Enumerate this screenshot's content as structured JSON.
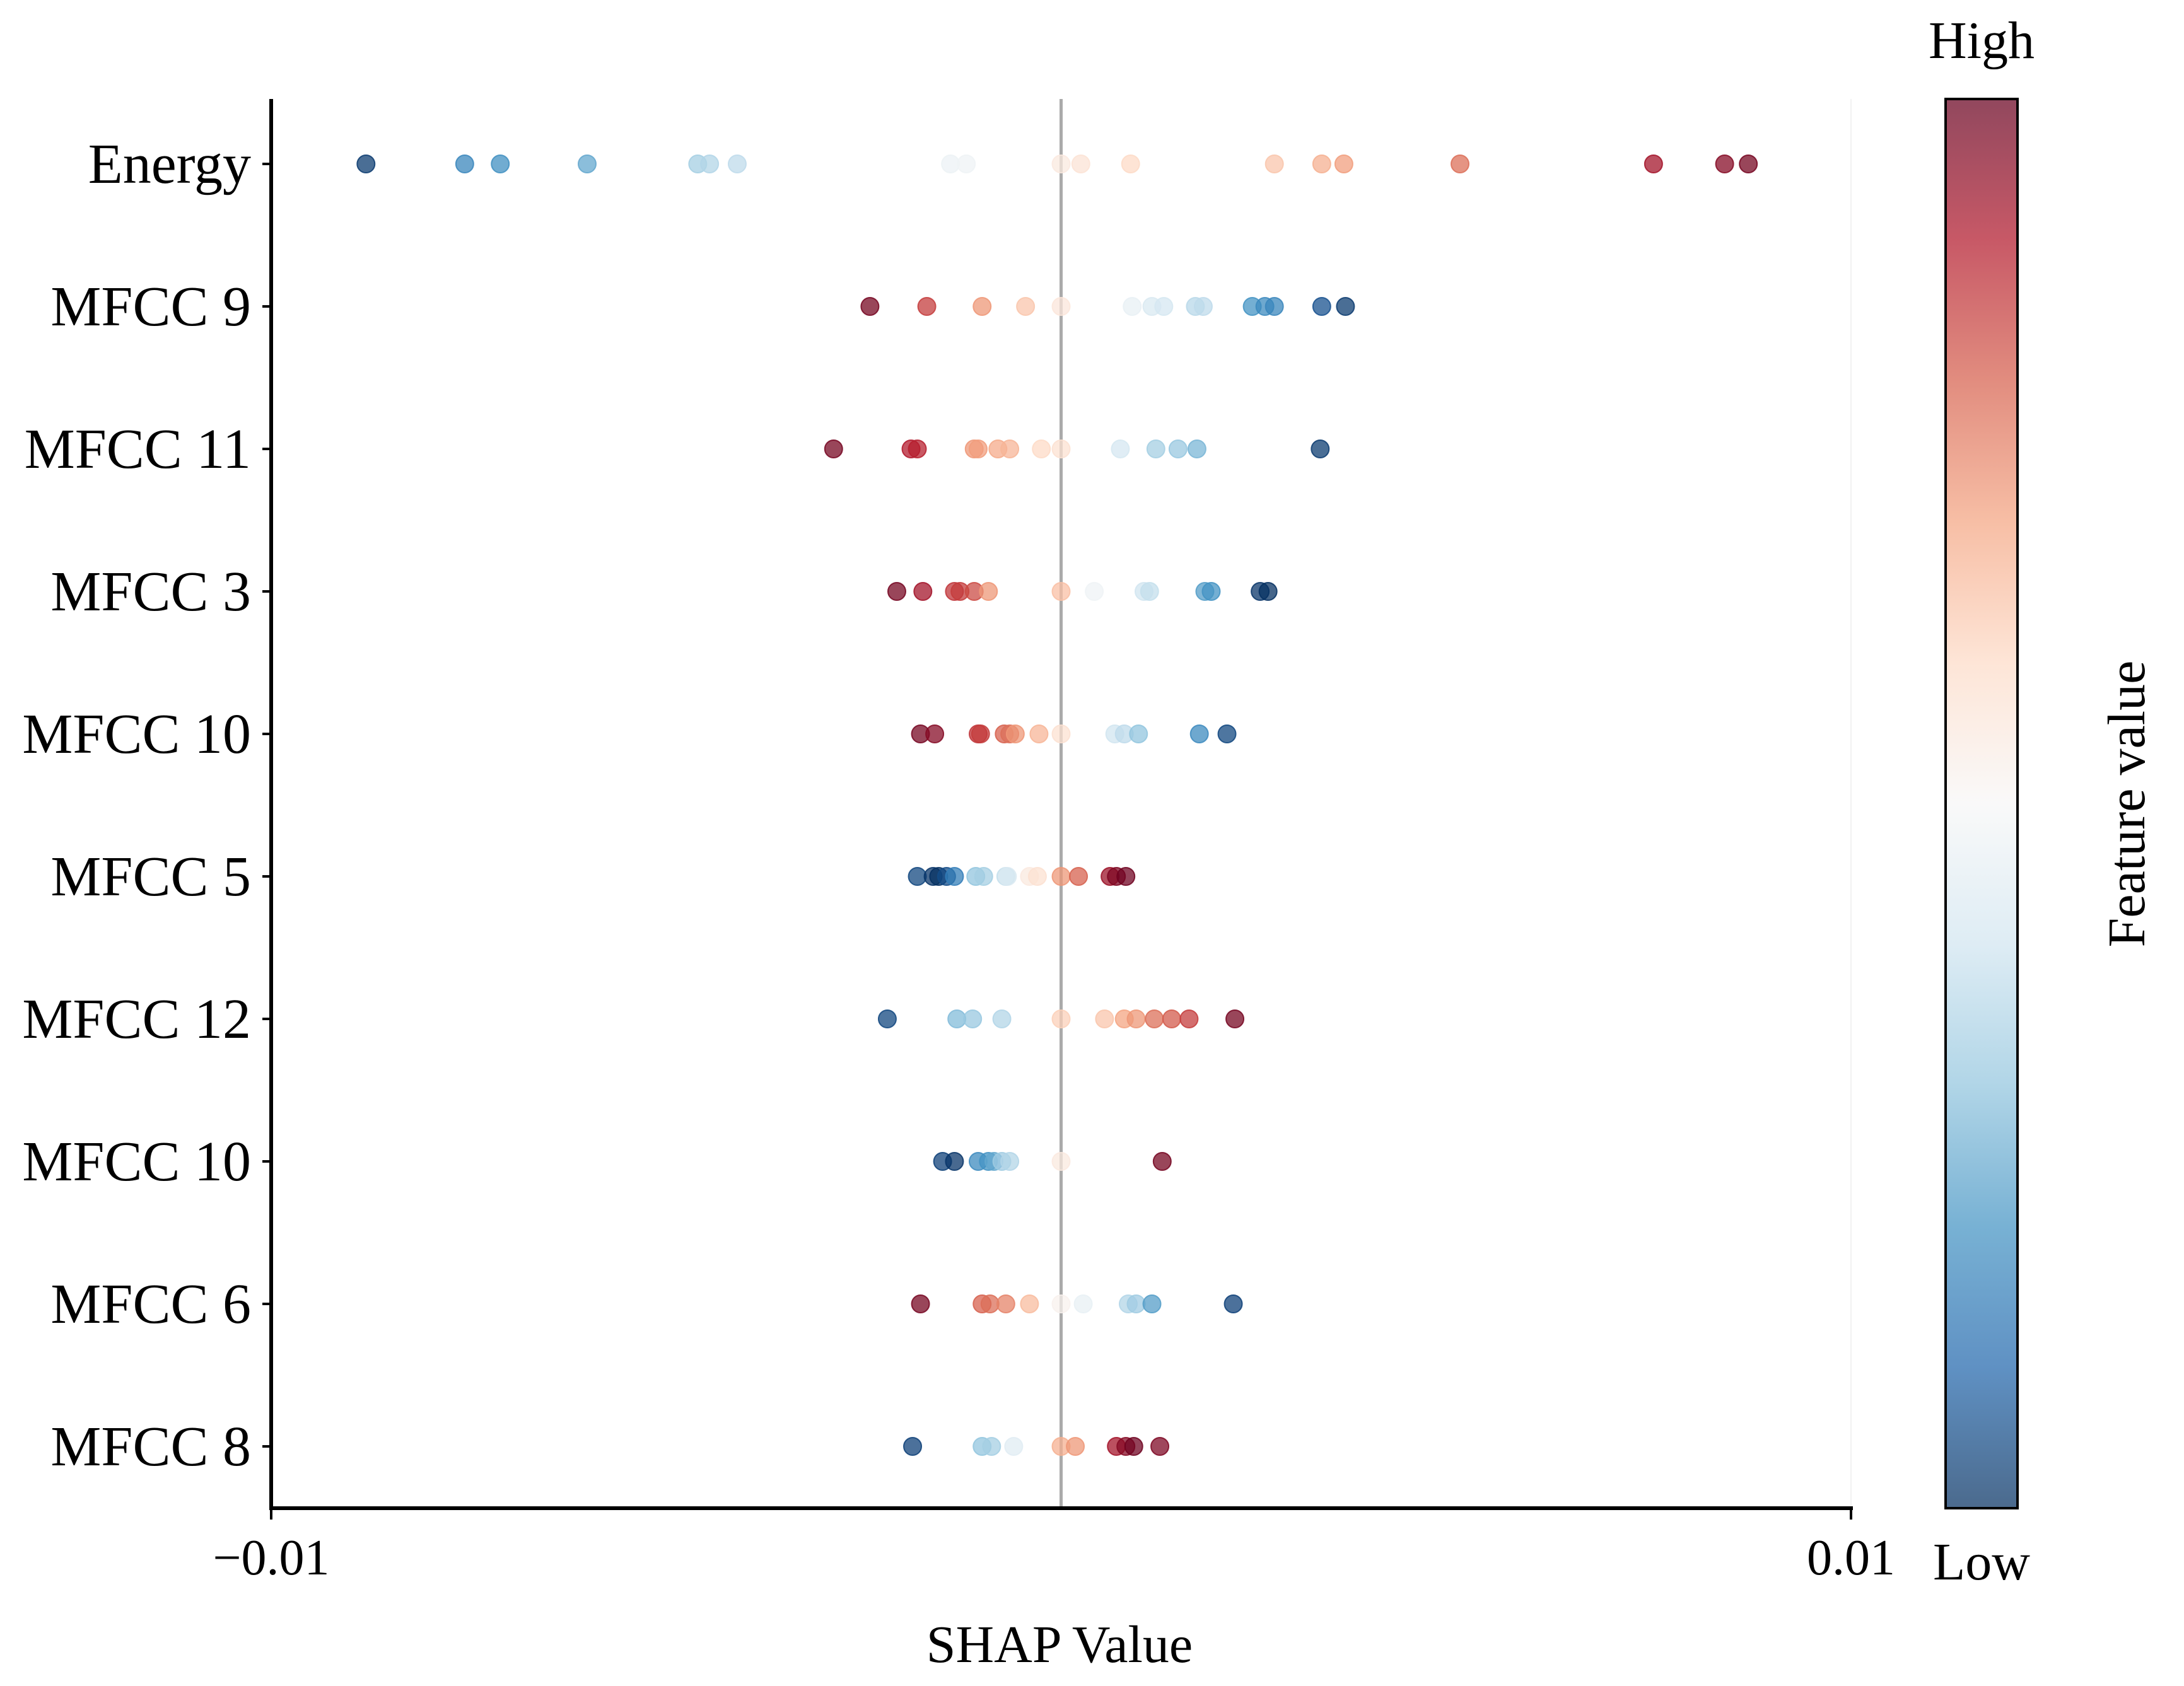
{
  "chart_data": {
    "type": "scatter",
    "subtype": "shap-beeswarm",
    "xlabel": "SHAP Value",
    "ylabel": "",
    "xlim": [
      -0.01,
      0.01
    ],
    "x_ticks": [
      -0.01,
      0.01
    ],
    "x_tick_labels": [
      "−0.01",
      "0.01"
    ],
    "zero_line": true,
    "grid": false,
    "colorbar": {
      "label": "Feature value",
      "high_label": "High",
      "low_label": "Low",
      "colormap": "RdBu_r",
      "colors": [
        "#053061",
        "#2166ac",
        "#4393c3",
        "#92c5de",
        "#d1e5f0",
        "#f7f7f7",
        "#fddbc7",
        "#f4a582",
        "#d6604d",
        "#b2182b",
        "#67001f"
      ]
    },
    "features": [
      {
        "name": "Energy",
        "points": [
          {
            "x": -0.0088,
            "v": 0.02
          },
          {
            "x": -0.00755,
            "v": 0.17
          },
          {
            "x": -0.0071,
            "v": 0.19
          },
          {
            "x": -0.006,
            "v": 0.24
          },
          {
            "x": -0.0046,
            "v": 0.33
          },
          {
            "x": -0.00445,
            "v": 0.35
          },
          {
            "x": -0.0041,
            "v": 0.37
          },
          {
            "x": -0.0014,
            "v": 0.47
          },
          {
            "x": -0.0012,
            "v": 0.48
          },
          {
            "x": 0.0,
            "v": 0.55
          },
          {
            "x": 0.00025,
            "v": 0.57
          },
          {
            "x": 0.00088,
            "v": 0.6
          },
          {
            "x": 0.0027,
            "v": 0.64
          },
          {
            "x": 0.0033,
            "v": 0.68
          },
          {
            "x": 0.00358,
            "v": 0.71
          },
          {
            "x": 0.00505,
            "v": 0.78
          },
          {
            "x": 0.0075,
            "v": 0.92
          },
          {
            "x": 0.0084,
            "v": 0.96
          },
          {
            "x": 0.0087,
            "v": 0.98
          }
        ]
      },
      {
        "name": "MFCC 9",
        "points": [
          {
            "x": -0.00242,
            "v": 0.98
          },
          {
            "x": -0.0017,
            "v": 0.85
          },
          {
            "x": -0.001,
            "v": 0.72
          },
          {
            "x": -0.00045,
            "v": 0.64
          },
          {
            "x": 0.0,
            "v": 0.56
          },
          {
            "x": 0.0009,
            "v": 0.46
          },
          {
            "x": 0.00115,
            "v": 0.42
          },
          {
            "x": 0.0013,
            "v": 0.41
          },
          {
            "x": 0.0017,
            "v": 0.36
          },
          {
            "x": 0.0018,
            "v": 0.37
          },
          {
            "x": 0.00242,
            "v": 0.2
          },
          {
            "x": 0.00258,
            "v": 0.18
          },
          {
            "x": 0.0027,
            "v": 0.17
          },
          {
            "x": 0.0033,
            "v": 0.06
          },
          {
            "x": 0.0036,
            "v": 0.02
          }
        ]
      },
      {
        "name": "MFCC 11",
        "points": [
          {
            "x": -0.00288,
            "v": 0.98
          },
          {
            "x": -0.0019,
            "v": 0.9
          },
          {
            "x": -0.00182,
            "v": 0.89
          },
          {
            "x": -0.0011,
            "v": 0.72
          },
          {
            "x": -0.00105,
            "v": 0.71
          },
          {
            "x": -0.0008,
            "v": 0.69
          },
          {
            "x": -0.00065,
            "v": 0.67
          },
          {
            "x": -0.00025,
            "v": 0.6
          },
          {
            "x": 0.0,
            "v": 0.58
          },
          {
            "x": 0.00075,
            "v": 0.41
          },
          {
            "x": 0.0012,
            "v": 0.33
          },
          {
            "x": 0.00148,
            "v": 0.31
          },
          {
            "x": 0.00172,
            "v": 0.27
          },
          {
            "x": 0.00328,
            "v": 0.02
          }
        ]
      },
      {
        "name": "MFCC 3",
        "points": [
          {
            "x": -0.00208,
            "v": 0.98
          },
          {
            "x": -0.00175,
            "v": 0.92
          },
          {
            "x": -0.00135,
            "v": 0.86
          },
          {
            "x": -0.00128,
            "v": 0.85
          },
          {
            "x": -0.0011,
            "v": 0.83
          },
          {
            "x": -0.00092,
            "v": 0.72
          },
          {
            "x": 0.0,
            "v": 0.65
          },
          {
            "x": 0.00042,
            "v": 0.48
          },
          {
            "x": 0.00105,
            "v": 0.4
          },
          {
            "x": 0.00112,
            "v": 0.38
          },
          {
            "x": 0.00182,
            "v": 0.22
          },
          {
            "x": 0.0019,
            "v": 0.2
          },
          {
            "x": 0.00252,
            "v": 0.01
          },
          {
            "x": 0.00262,
            "v": 0.0
          }
        ]
      },
      {
        "name": "MFCC 10",
        "points": [
          {
            "x": -0.00178,
            "v": 0.98
          },
          {
            "x": -0.0016,
            "v": 0.96
          },
          {
            "x": -0.00105,
            "v": 0.86
          },
          {
            "x": -0.00102,
            "v": 0.85
          },
          {
            "x": -0.00072,
            "v": 0.8
          },
          {
            "x": -0.00065,
            "v": 0.78
          },
          {
            "x": -0.00058,
            "v": 0.72
          },
          {
            "x": -0.00028,
            "v": 0.67
          },
          {
            "x": 0.0,
            "v": 0.58
          },
          {
            "x": 0.00068,
            "v": 0.4
          },
          {
            "x": 0.0008,
            "v": 0.37
          },
          {
            "x": 0.00098,
            "v": 0.3
          },
          {
            "x": 0.00175,
            "v": 0.18
          },
          {
            "x": 0.0021,
            "v": 0.04
          }
        ]
      },
      {
        "name": "MFCC 5",
        "points": [
          {
            "x": -0.00182,
            "v": 0.04
          },
          {
            "x": -0.00162,
            "v": 0.01
          },
          {
            "x": -0.00155,
            "v": 0.0
          },
          {
            "x": -0.00145,
            "v": 0.05
          },
          {
            "x": -0.00135,
            "v": 0.15
          },
          {
            "x": -0.00108,
            "v": 0.3
          },
          {
            "x": -0.00098,
            "v": 0.33
          },
          {
            "x": -0.0007,
            "v": 0.38
          },
          {
            "x": -0.00068,
            "v": 0.42
          },
          {
            "x": -0.0004,
            "v": 0.55
          },
          {
            "x": -0.0003,
            "v": 0.58
          },
          {
            "x": 0.0,
            "v": 0.72
          },
          {
            "x": 0.00022,
            "v": 0.8
          },
          {
            "x": 0.00062,
            "v": 0.93
          },
          {
            "x": 0.0007,
            "v": 0.97
          },
          {
            "x": 0.00082,
            "v": 0.99
          }
        ]
      },
      {
        "name": "MFCC 12",
        "points": [
          {
            "x": -0.0022,
            "v": 0.04
          },
          {
            "x": -0.00132,
            "v": 0.28
          },
          {
            "x": -0.00112,
            "v": 0.31
          },
          {
            "x": -0.00075,
            "v": 0.35
          },
          {
            "x": 0.0,
            "v": 0.62
          },
          {
            "x": 0.00055,
            "v": 0.64
          },
          {
            "x": 0.0008,
            "v": 0.7
          },
          {
            "x": 0.00095,
            "v": 0.72
          },
          {
            "x": 0.00118,
            "v": 0.78
          },
          {
            "x": 0.0014,
            "v": 0.81
          },
          {
            "x": 0.00162,
            "v": 0.85
          },
          {
            "x": 0.0022,
            "v": 0.98
          }
        ]
      },
      {
        "name": "MFCC 10",
        "points": [
          {
            "x": -0.0015,
            "v": 0.03
          },
          {
            "x": -0.00135,
            "v": 0.01
          },
          {
            "x": -0.00105,
            "v": 0.18
          },
          {
            "x": -0.00092,
            "v": 0.2
          },
          {
            "x": -0.00085,
            "v": 0.24
          },
          {
            "x": -0.00075,
            "v": 0.32
          },
          {
            "x": -0.00065,
            "v": 0.35
          },
          {
            "x": 0.0,
            "v": 0.55
          },
          {
            "x": 0.00128,
            "v": 0.98
          }
        ]
      },
      {
        "name": "MFCC 6",
        "points": [
          {
            "x": -0.00178,
            "v": 0.98
          },
          {
            "x": -0.001,
            "v": 0.8
          },
          {
            "x": -0.0009,
            "v": 0.78
          },
          {
            "x": -0.0007,
            "v": 0.75
          },
          {
            "x": -0.0004,
            "v": 0.66
          },
          {
            "x": 0.0,
            "v": 0.52
          },
          {
            "x": 0.00028,
            "v": 0.46
          },
          {
            "x": 0.00085,
            "v": 0.35
          },
          {
            "x": 0.00095,
            "v": 0.32
          },
          {
            "x": 0.00115,
            "v": 0.22
          },
          {
            "x": 0.00218,
            "v": 0.03
          }
        ]
      },
      {
        "name": "MFCC 8",
        "points": [
          {
            "x": -0.00188,
            "v": 0.03
          },
          {
            "x": -0.001,
            "v": 0.3
          },
          {
            "x": -0.00088,
            "v": 0.33
          },
          {
            "x": -0.0006,
            "v": 0.44
          },
          {
            "x": 0.0,
            "v": 0.68
          },
          {
            "x": 0.00018,
            "v": 0.72
          },
          {
            "x": 0.0007,
            "v": 0.92
          },
          {
            "x": 0.00082,
            "v": 0.96
          },
          {
            "x": 0.00092,
            "v": 0.99
          },
          {
            "x": 0.00125,
            "v": 0.97
          }
        ]
      }
    ]
  }
}
